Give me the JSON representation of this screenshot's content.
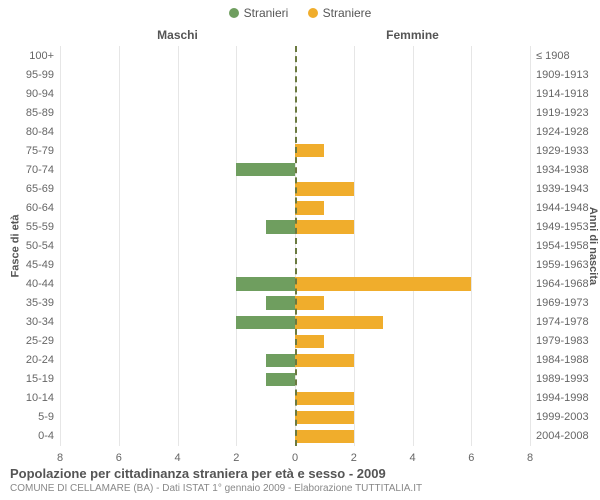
{
  "legend": {
    "male": {
      "label": "Stranieri",
      "color": "#6f9e5f"
    },
    "female": {
      "label": "Straniere",
      "color": "#f0ad2c"
    }
  },
  "headers": {
    "left": "Maschi",
    "right": "Femmine"
  },
  "axis": {
    "y_left_title": "Fasce di età",
    "y_right_title": "Anni di nascita",
    "x_domain": 8,
    "x_ticks": [
      8,
      6,
      4,
      2,
      0,
      2,
      4,
      6,
      8
    ]
  },
  "colors": {
    "male": "#6f9e5f",
    "female": "#f0ad2c",
    "grid": "#e6e6e6",
    "center_dash": "#6b7a40"
  },
  "rows": [
    {
      "age": "100+",
      "birth": "≤ 1908",
      "m": 0,
      "f": 0
    },
    {
      "age": "95-99",
      "birth": "1909-1913",
      "m": 0,
      "f": 0
    },
    {
      "age": "90-94",
      "birth": "1914-1918",
      "m": 0,
      "f": 0
    },
    {
      "age": "85-89",
      "birth": "1919-1923",
      "m": 0,
      "f": 0
    },
    {
      "age": "80-84",
      "birth": "1924-1928",
      "m": 0,
      "f": 0
    },
    {
      "age": "75-79",
      "birth": "1929-1933",
      "m": 0,
      "f": 1
    },
    {
      "age": "70-74",
      "birth": "1934-1938",
      "m": 2,
      "f": 0
    },
    {
      "age": "65-69",
      "birth": "1939-1943",
      "m": 0,
      "f": 2
    },
    {
      "age": "60-64",
      "birth": "1944-1948",
      "m": 0,
      "f": 1
    },
    {
      "age": "55-59",
      "birth": "1949-1953",
      "m": 1,
      "f": 2
    },
    {
      "age": "50-54",
      "birth": "1954-1958",
      "m": 0,
      "f": 0
    },
    {
      "age": "45-49",
      "birth": "1959-1963",
      "m": 0,
      "f": 0
    },
    {
      "age": "40-44",
      "birth": "1964-1968",
      "m": 2,
      "f": 6
    },
    {
      "age": "35-39",
      "birth": "1969-1973",
      "m": 1,
      "f": 1
    },
    {
      "age": "30-34",
      "birth": "1974-1978",
      "m": 2,
      "f": 3
    },
    {
      "age": "25-29",
      "birth": "1979-1983",
      "m": 0,
      "f": 1
    },
    {
      "age": "20-24",
      "birth": "1984-1988",
      "m": 1,
      "f": 2
    },
    {
      "age": "15-19",
      "birth": "1989-1993",
      "m": 1,
      "f": 0
    },
    {
      "age": "10-14",
      "birth": "1994-1998",
      "m": 0,
      "f": 2
    },
    {
      "age": "5-9",
      "birth": "1999-2003",
      "m": 0,
      "f": 2
    },
    {
      "age": "0-4",
      "birth": "2004-2008",
      "m": 0,
      "f": 2
    }
  ],
  "footer": {
    "title": "Popolazione per cittadinanza straniera per età e sesso - 2009",
    "subtitle": "COMUNE DI CELLAMARE (BA) - Dati ISTAT 1° gennaio 2009 - Elaborazione TUTTITALIA.IT"
  }
}
